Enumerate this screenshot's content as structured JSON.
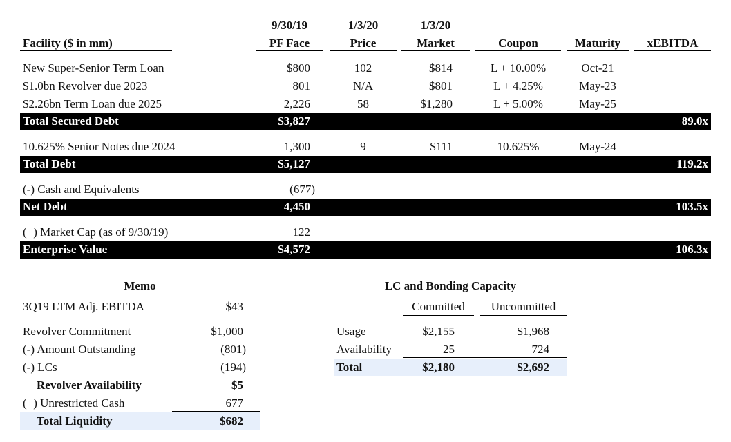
{
  "main": {
    "headers": {
      "facility": "Facility ($ in mm)",
      "pf_face": [
        "9/30/19",
        "PF Face"
      ],
      "price": [
        "1/3/20",
        "Price"
      ],
      "market": [
        "1/3/20",
        "Market"
      ],
      "coupon": "Coupon",
      "maturity": "Maturity",
      "xebitda": "xEBITDA"
    },
    "rows": [
      {
        "label": "New Super-Senior Term Loan",
        "pf_face": "$800",
        "price": "102",
        "market": "$814",
        "coupon": "L + 10.00%",
        "maturity": "Oct-21"
      },
      {
        "label": "$1.0bn Revolver due 2023",
        "pf_face": "801",
        "price": "N/A",
        "market": "$801",
        "coupon": "L + 4.25%",
        "maturity": "May-23"
      },
      {
        "label": "$2.26bn Term Loan due 2025",
        "pf_face": "2,226",
        "price": "58",
        "market": "$1,280",
        "coupon": "L + 5.00%",
        "maturity": "May-25"
      },
      {
        "label": "10.625% Senior Notes due 2024",
        "pf_face": "1,300",
        "price": "9",
        "market": "$111",
        "coupon": "10.625%",
        "maturity": "May-24"
      },
      {
        "label": "(-) Cash and Equivalents",
        "pf_face": "(677)"
      },
      {
        "label": "(+) Market Cap (as of 9/30/19)",
        "pf_face": "122"
      }
    ],
    "totals": [
      {
        "label": "Total Secured Debt",
        "pf_face": "$3,827",
        "xebitda": "89.0x"
      },
      {
        "label": "Total Debt",
        "pf_face": "$5,127",
        "xebitda": "119.2x"
      },
      {
        "label": "Net Debt",
        "pf_face": "4,450",
        "xebitda": "103.5x"
      },
      {
        "label": "Enterprise Value",
        "pf_face": "$4,572",
        "xebitda": "106.3x"
      }
    ]
  },
  "memo": {
    "title": "Memo",
    "rows": [
      {
        "label": "3Q19 LTM Adj. EBITDA",
        "value": "$43"
      },
      {
        "label": "Revolver Commitment",
        "value": "$1,000"
      },
      {
        "label": "(-) Amount Outstanding",
        "value": "(801)"
      },
      {
        "label": "(-) LCs",
        "value": "(194)"
      },
      {
        "label": "Revolver Availability",
        "value": "$5"
      },
      {
        "label": "(+) Unrestricted Cash",
        "value": "677"
      },
      {
        "label": "Total Liquidity",
        "value": "$682"
      }
    ]
  },
  "lc": {
    "title": "LC and Bonding Capacity",
    "columns": [
      "Committed",
      "Uncommitted"
    ],
    "rows": [
      {
        "label": "Usage",
        "committed": "$2,155",
        "uncommitted": "$1,968"
      },
      {
        "label": "Availability",
        "committed": "25",
        "uncommitted": "724"
      },
      {
        "label": "Total",
        "committed": "$2,180",
        "uncommitted": "$2,692"
      }
    ]
  },
  "colors": {
    "bar": "#000000",
    "highlight": "#e7effb"
  }
}
